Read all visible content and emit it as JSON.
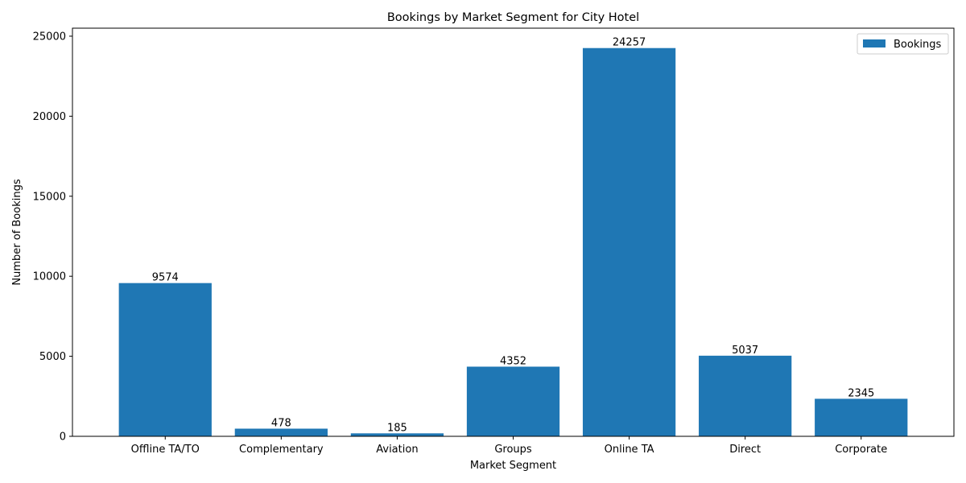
{
  "chart_data": {
    "type": "bar",
    "title": "Bookings by Market Segment for City Hotel",
    "xlabel": "Market Segment",
    "ylabel": "Number of Bookings",
    "categories": [
      "Offline TA/TO",
      "Complementary",
      "Aviation",
      "Groups",
      "Online TA",
      "Direct",
      "Corporate"
    ],
    "series": [
      {
        "name": "Bookings",
        "values": [
          9574,
          478,
          185,
          4352,
          24257,
          5037,
          2345
        ]
      }
    ],
    "ylim": [
      0,
      25500
    ],
    "yticks": [
      0,
      5000,
      10000,
      15000,
      20000,
      25000
    ],
    "data_labels": true,
    "grid": false,
    "legend": "top-right",
    "colors": {
      "bar": "#1f77b4",
      "axis": "#000000"
    }
  }
}
